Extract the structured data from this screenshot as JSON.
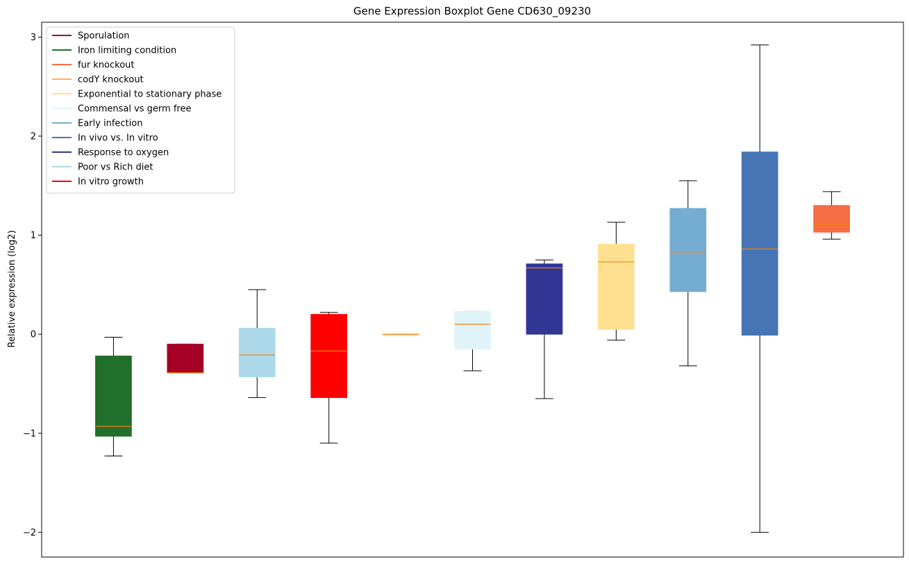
{
  "chart_data": {
    "type": "boxplot",
    "title": "Gene Expression Boxplot Gene CD630_09230",
    "xlabel": "",
    "ylabel": "Relative expression (log2)",
    "ylim": [
      -2.25,
      3.15
    ],
    "yticks": [
      -2,
      -1,
      0,
      1,
      2,
      3
    ],
    "ytick_labels": [
      "−2",
      "−1",
      "0",
      "1",
      "2",
      "3"
    ],
    "median_color": "#ff7f0e",
    "whisker_color": "#000000",
    "legend_position": "top-left",
    "legend": [
      {
        "label": "Sporulation",
        "color": "#a50026"
      },
      {
        "label": "Iron limiting condition",
        "color": "#226f2c"
      },
      {
        "label": "fur knockout",
        "color": "#f46d43"
      },
      {
        "label": "codY knockout",
        "color": "#fdae61"
      },
      {
        "label": "Exponential to stationary phase",
        "color": "#fee090"
      },
      {
        "label": "Commensal vs germ free",
        "color": "#e0f3f8"
      },
      {
        "label": "Early infection",
        "color": "#74add1"
      },
      {
        "label": "In vivo vs. In vitro",
        "color": "#4575b4"
      },
      {
        "label": "Response to oxygen",
        "color": "#313695"
      },
      {
        "label": "Poor vs Rich diet",
        "color": "#abd9e9"
      },
      {
        "label": "In vitro growth",
        "color": "#ff0000"
      }
    ],
    "series": [
      {
        "color": "#226f2c",
        "whislo": -1.23,
        "q1": -1.03,
        "med": -0.93,
        "q3": -0.22,
        "whishi": -0.03
      },
      {
        "color": "#a50026",
        "whislo": -0.39,
        "q1": -0.39,
        "med": -0.39,
        "q3": -0.1,
        "whishi": -0.1
      },
      {
        "color": "#abd9e9",
        "whislo": -0.64,
        "q1": -0.43,
        "med": -0.21,
        "q3": 0.06,
        "whishi": 0.45
      },
      {
        "color": "#ff0000",
        "whislo": -1.1,
        "q1": -0.64,
        "med": -0.17,
        "q3": 0.2,
        "whishi": 0.22
      },
      {
        "color": "#fdae61",
        "whislo": 0.0,
        "q1": 0.0,
        "med": 0.0,
        "q3": 0.0,
        "whishi": 0.0
      },
      {
        "color": "#e0f3f8",
        "whislo": -0.37,
        "q1": -0.15,
        "med": 0.1,
        "q3": 0.23,
        "whishi": 0.23
      },
      {
        "color": "#313695",
        "whislo": -0.65,
        "q1": 0.0,
        "med": 0.67,
        "q3": 0.71,
        "whishi": 0.75
      },
      {
        "color": "#fee090",
        "whislo": -0.06,
        "q1": 0.05,
        "med": 0.73,
        "q3": 0.91,
        "whishi": 1.13
      },
      {
        "color": "#74add1",
        "whislo": -0.32,
        "q1": 0.43,
        "med": 0.83,
        "q3": 1.27,
        "whishi": 1.55
      },
      {
        "color": "#4575b4",
        "whislo": -2.0,
        "q1": -0.01,
        "med": 0.86,
        "q3": 1.84,
        "whishi": 2.92
      },
      {
        "color": "#f46d43",
        "whislo": 0.96,
        "q1": 1.03,
        "med": 1.11,
        "q3": 1.3,
        "whishi": 1.44
      }
    ]
  }
}
